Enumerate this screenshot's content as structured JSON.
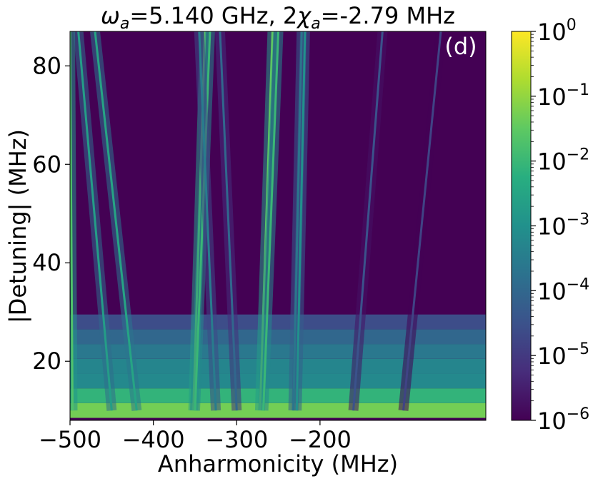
{
  "chart_data": {
    "type": "heatmap",
    "title": {
      "omega_symbol": "ω",
      "omega_sub": "a",
      "part1": "=5.140 GHz, 2",
      "chi_symbol": "χ",
      "chi_sub": "a",
      "part2": "=-2.79 MHz"
    },
    "panel_label": "(d)",
    "xlabel": "Anharmonicity (MHz)",
    "ylabel": "|Detuning| (MHz)",
    "xlim": [
      -500,
      -1
    ],
    "ylim": [
      8,
      87
    ],
    "x_ticks": [
      -500,
      -400,
      -300,
      -200
    ],
    "x_tick_labels": [
      "−500",
      "−400",
      "−300",
      "−200"
    ],
    "y_ticks": [
      20,
      40,
      60,
      80
    ],
    "y_tick_labels": [
      "20",
      "40",
      "60",
      "80"
    ],
    "colorbar": {
      "scale": "log",
      "range": [
        1e-06,
        1
      ],
      "colormap": "viridis",
      "ticks": [
        {
          "base": "10",
          "exp": "0"
        },
        {
          "base": "10",
          "exp": "−1"
        },
        {
          "base": "10",
          "exp": "−2"
        },
        {
          "base": "10",
          "exp": "−3"
        },
        {
          "base": "10",
          "exp": "−4"
        },
        {
          "base": "10",
          "exp": "−5"
        },
        {
          "base": "10",
          "exp": "−6"
        }
      ]
    },
    "resonance_lines": [
      {
        "anh_at_det10": -497,
        "anh_at_det87": -500,
        "peak_log": -1.7
      },
      {
        "anh_at_det10": -450,
        "anh_at_det87": -490,
        "peak_log": -2.7
      },
      {
        "anh_at_det10": -420,
        "anh_at_det87": -470,
        "peak_log": -2.5
      },
      {
        "anh_at_det10": -352,
        "anh_at_det87": -338,
        "peak_log": -1.5
      },
      {
        "anh_at_det10": -350,
        "anh_at_det87": -332,
        "peak_log": -2.0
      },
      {
        "anh_at_det10": -325,
        "anh_at_det87": -345,
        "peak_log": -3.5
      },
      {
        "anh_at_det10": -300,
        "anh_at_det87": -320,
        "peak_log": -4.0
      },
      {
        "anh_at_det10": -272,
        "anh_at_det87": -257,
        "peak_log": -1.5
      },
      {
        "anh_at_det10": -268,
        "anh_at_det87": -250,
        "peak_log": -2.0
      },
      {
        "anh_at_det10": -232,
        "anh_at_det87": -222,
        "peak_log": -3.0
      },
      {
        "anh_at_det10": -228,
        "anh_at_det87": -218,
        "peak_log": -3.0
      },
      {
        "anh_at_det10": -160,
        "anh_at_det87": -125,
        "peak_log": -4.5
      },
      {
        "anh_at_det10": -100,
        "anh_at_det87": -55,
        "peak_log": -4.8
      }
    ],
    "low_detuning_bands": [
      {
        "det_lo": 8.5,
        "det_hi": 11.5,
        "log": -1.3
      },
      {
        "det_lo": 11.5,
        "det_hi": 14.5,
        "log": -2.1
      },
      {
        "det_lo": 14.5,
        "det_hi": 17.5,
        "log": -3.2
      },
      {
        "det_lo": 17.5,
        "det_hi": 20.5,
        "log": -3.3
      },
      {
        "det_lo": 20.5,
        "det_hi": 23.5,
        "log": -3.6
      },
      {
        "det_lo": 23.5,
        "det_hi": 26.5,
        "log": -4.0
      },
      {
        "det_lo": 26.5,
        "det_hi": 29.5,
        "log": -4.6
      }
    ],
    "background_log": -6
  }
}
